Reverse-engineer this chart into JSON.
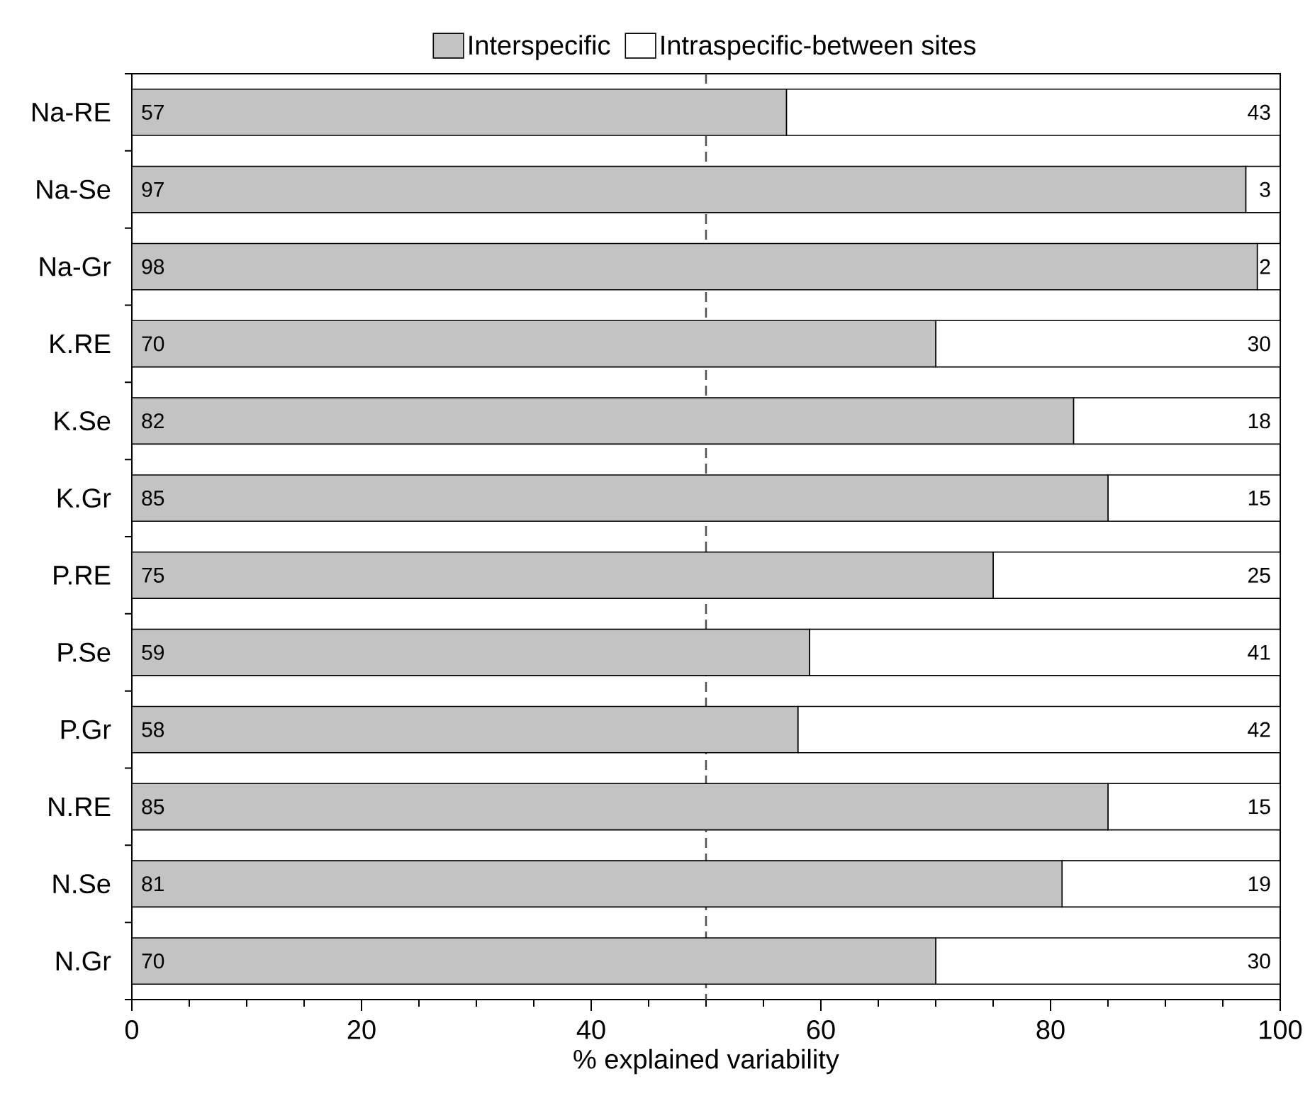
{
  "chart_data": {
    "type": "bar",
    "orientation": "horizontal",
    "stacked": true,
    "xlabel": "% explained variability",
    "categories": [
      "Na-RE",
      "Na-Se",
      "Na-Gr",
      "K.RE",
      "K.Se",
      "K.Gr",
      "P.RE",
      "P.Se",
      "P.Gr",
      "N.RE",
      "N.Se",
      "N.Gr"
    ],
    "series": [
      {
        "name": "Interspecific",
        "color": "#c3c3c3",
        "values": [
          57,
          97,
          98,
          70,
          82,
          85,
          75,
          59,
          58,
          85,
          81,
          70
        ]
      },
      {
        "name": "Intraspecific-between sites",
        "color": "#ffffff",
        "values": [
          43,
          3,
          2,
          30,
          18,
          15,
          25,
          41,
          42,
          15,
          19,
          30
        ]
      }
    ],
    "xlim": [
      0,
      100
    ],
    "xticks": [
      0,
      20,
      40,
      60,
      80,
      100
    ],
    "ref_lines": [
      {
        "axis": "x",
        "value": 50,
        "color": "#505050",
        "line_style": "dashed"
      }
    ],
    "data_labels": true,
    "legend": "top",
    "grid": false
  }
}
